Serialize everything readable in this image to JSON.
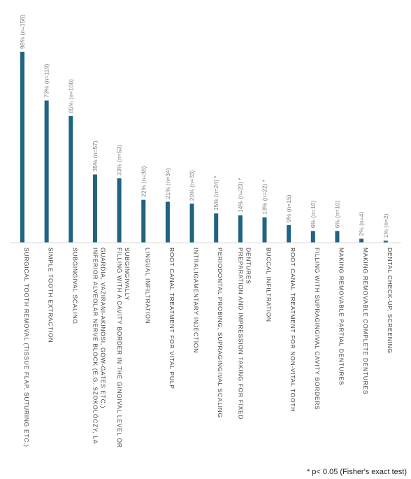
{
  "chart_data": {
    "type": "bar",
    "categories": [
      [
        "SURGICAL TOOTH REMOVAL (TISSUE FLAP, SUTURING ETC.)"
      ],
      [
        "SIMPLE TOOTH EXTRACTION"
      ],
      [
        "SUBGINGIVAL SCALING"
      ],
      [
        "INFERIOR ALVEOLAR NERVE BLOCK (E.G. SZOKOLÓCZY, LA",
        "GUARDIA, VAZIRANI-AKINOSI, GOW-GATES ETC.)"
      ],
      [
        "FILLING WITH A CAVITY BORDER IN THE GINGIVAL LEVEL OR",
        "SUBGINGIVALLY"
      ],
      [
        "LINGUAL INFILTRATION"
      ],
      [
        "ROOT CANAL TREATMENT FOR VITAL PULP"
      ],
      [
        "INTRALIGAMENTARY INJECTION"
      ],
      [
        "PERIODONTAL PROBING, SUPRAGINGIVAL SCALING"
      ],
      [
        "PREPARATION AND IMPRESSION TAKING FOR FIXED",
        "DENTURES"
      ],
      [
        "BUCCAL INFILTRATION"
      ],
      [
        "ROOT CANAL TREATMENT FOR NON-VITAL TOOTH"
      ],
      [
        "FILLING WITH SUPRAGINGIVAL CAVITY BORDERS"
      ],
      [
        "MAKING REMOVABLE PARTIAL DENTURES"
      ],
      [
        "MAKING REMOVABLE COMPLETE DENTURES"
      ],
      [
        "DENTAL CHECK-UP, SCREENING"
      ]
    ],
    "values": [
      98,
      73,
      65,
      35,
      33,
      22,
      21,
      20,
      15,
      14,
      13,
      9,
      6,
      6,
      2,
      1
    ],
    "labels": [
      "98% (n=158)",
      "73% (n=119)",
      "65% (n=106)",
      "35% (n=57)",
      "33% (n=53)",
      "22% (n=36)",
      "21% (n=34)",
      "20% (n=33)",
      "15% (n=24) *",
      "14% (n=23) *",
      "13% (n=22) *",
      "9% (n=15)",
      "6% (n=10)",
      "6% (n=10)",
      "2% (n=4)",
      "1% (n=2)"
    ],
    "ylim": [
      0,
      100
    ],
    "bar_color": "#1f6482",
    "grid": false,
    "footnote": "* p< 0.05 (Fisher's exact test)"
  }
}
